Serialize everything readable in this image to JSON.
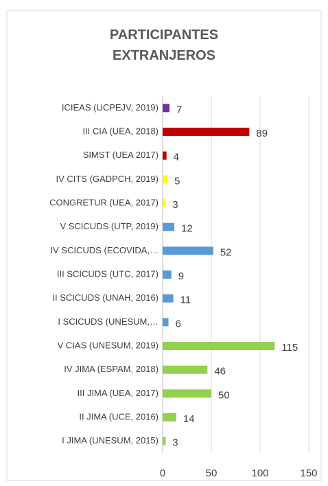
{
  "chart_data": {
    "type": "bar",
    "orientation": "horizontal",
    "title": "PARTICIPANTES EXTRANJEROS",
    "categories": [
      "ICIEAS (UCPEJV, 2019)",
      "III CIA (UEA, 2018)",
      "SIMST (UEA 2017)",
      "IV CITS (GADPCH, 2019)",
      "CONGRETUR (UEA, 2017)",
      "V SCICUDS (UTP, 2019)",
      "IV SCICUDS (ECOVIDA,…",
      "III SCICUDS (UTC, 2017)",
      "II SCICUDS (UNAH, 2016)",
      "I SCICUDS (UNESUM,…",
      "V CIAS (UNESUM, 2019)",
      "IV JIMA (ESPAM, 2018)",
      "III JIMA (UEA, 2017)",
      "II JIMA (UCE, 2016)",
      "I JIMA (UNESUM, 2015)"
    ],
    "values": [
      7,
      89,
      4,
      5,
      3,
      12,
      52,
      9,
      11,
      6,
      115,
      46,
      50,
      14,
      3
    ],
    "colors": [
      "#7030a0",
      "#c00000",
      "#c00000",
      "#ffff00",
      "#ffff00",
      "#5b9bd5",
      "#5b9bd5",
      "#5b9bd5",
      "#5b9bd5",
      "#5b9bd5",
      "#92d050",
      "#92d050",
      "#92d050",
      "#92d050",
      "#92d050"
    ],
    "xlim": [
      0,
      150
    ],
    "xticks": [
      0,
      50,
      100,
      150
    ],
    "grid": true
  }
}
